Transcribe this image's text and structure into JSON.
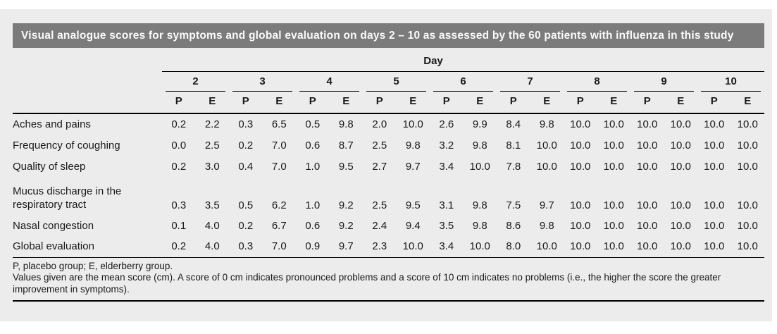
{
  "colors": {
    "panel_bg": "#ececec",
    "title_bar_bg": "#7b7b7b",
    "title_text": "#fbfbfb",
    "rule": "#000000",
    "body_text": "#1a1a1a"
  },
  "table": {
    "title": "Visual analogue scores for symptoms and global evaluation on days 2 – 10 as assessed by the 60 patients with influenza in this study",
    "day_header": "Day",
    "days": [
      "2",
      "3",
      "4",
      "5",
      "6",
      "7",
      "8",
      "9",
      "10"
    ],
    "subcols": [
      "P",
      "E"
    ],
    "rows": [
      {
        "label": "Aches and pains",
        "two_line": false,
        "values": [
          "0.2",
          "2.2",
          "0.3",
          "6.5",
          "0.5",
          "9.8",
          "2.0",
          "10.0",
          "2.6",
          "9.9",
          "8.4",
          "9.8",
          "10.0",
          "10.0",
          "10.0",
          "10.0",
          "10.0",
          "10.0"
        ]
      },
      {
        "label": "Frequency of coughing",
        "two_line": false,
        "values": [
          "0.0",
          "2.5",
          "0.2",
          "7.0",
          "0.6",
          "8.7",
          "2.5",
          "9.8",
          "3.2",
          "9.8",
          "8.1",
          "10.0",
          "10.0",
          "10.0",
          "10.0",
          "10.0",
          "10.0",
          "10.0"
        ]
      },
      {
        "label": "Quality of sleep",
        "two_line": false,
        "values": [
          "0.2",
          "3.0",
          "0.4",
          "7.0",
          "1.0",
          "9.5",
          "2.7",
          "9.7",
          "3.4",
          "10.0",
          "7.8",
          "10.0",
          "10.0",
          "10.0",
          "10.0",
          "10.0",
          "10.0",
          "10.0"
        ]
      },
      {
        "label": "Mucus discharge in the respiratory tract",
        "two_line": true,
        "values": [
          "0.3",
          "3.5",
          "0.5",
          "6.2",
          "1.0",
          "9.2",
          "2.5",
          "9.5",
          "3.1",
          "9.8",
          "7.5",
          "9.7",
          "10.0",
          "10.0",
          "10.0",
          "10.0",
          "10.0",
          "10.0"
        ]
      },
      {
        "label": "Nasal congestion",
        "two_line": false,
        "values": [
          "0.1",
          "4.0",
          "0.2",
          "6.7",
          "0.6",
          "9.2",
          "2.4",
          "9.4",
          "3.5",
          "9.8",
          "8.6",
          "9.8",
          "10.0",
          "10.0",
          "10.0",
          "10.0",
          "10.0",
          "10.0"
        ]
      },
      {
        "label": "Global evaluation",
        "two_line": false,
        "values": [
          "0.2",
          "4.0",
          "0.3",
          "7.0",
          "0.9",
          "9.7",
          "2.3",
          "10.0",
          "3.4",
          "10.0",
          "8.0",
          "10.0",
          "10.0",
          "10.0",
          "10.0",
          "10.0",
          "10.0",
          "10.0"
        ]
      }
    ],
    "footnotes": [
      "P, placebo group; E, elderberry group.",
      "Values given are the mean score (cm). A score of 0 cm indicates pronounced problems and a score of 10 cm indicates no problems (i.e., the higher the score the greater improvement in symptoms)."
    ]
  }
}
